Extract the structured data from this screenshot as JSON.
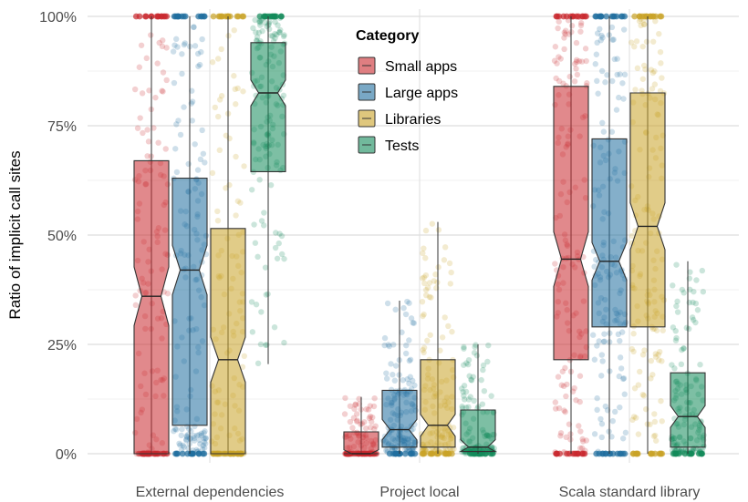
{
  "chart_data": {
    "type": "boxplot",
    "ylabel": "Ratio of implicit call sites",
    "xlabel": "",
    "ylim": [
      0,
      100
    ],
    "y_ticks": [
      0,
      25,
      50,
      75,
      100
    ],
    "y_tick_labels": [
      "0%",
      "25%",
      "50%",
      "75%",
      "100%"
    ],
    "categories": [
      "External dependencies",
      "Project local",
      "Scala standard library"
    ],
    "legend": {
      "title": "Category",
      "position": "top-center"
    },
    "grid": true,
    "jittered_points": true,
    "notched": true,
    "series": [
      {
        "name": "Small apps",
        "color": "#c9282d",
        "boxes": [
          {
            "q1": 0,
            "median": 36,
            "q3": 67,
            "whisker_low": 0,
            "whisker_high": 100
          },
          {
            "q1": 0,
            "median": 0,
            "q3": 5,
            "whisker_low": 0,
            "whisker_high": 13
          },
          {
            "q1": 21.5,
            "median": 44.5,
            "q3": 84,
            "whisker_low": 0,
            "whisker_high": 100
          }
        ]
      },
      {
        "name": "Large apps",
        "color": "#1f6e9e",
        "boxes": [
          {
            "q1": 6.5,
            "median": 42,
            "q3": 63,
            "whisker_low": 0,
            "whisker_high": 100
          },
          {
            "q1": 1.5,
            "median": 5.5,
            "q3": 14.5,
            "whisker_low": 0,
            "whisker_high": 35
          },
          {
            "q1": 29,
            "median": 44,
            "q3": 72,
            "whisker_low": 0,
            "whisker_high": 100
          }
        ]
      },
      {
        "name": "Libraries",
        "color": "#c9a227",
        "boxes": [
          {
            "q1": 0,
            "median": 21.5,
            "q3": 51.5,
            "whisker_low": 0,
            "whisker_high": 100
          },
          {
            "q1": 1.5,
            "median": 6.5,
            "q3": 21.5,
            "whisker_low": 0,
            "whisker_high": 53
          },
          {
            "q1": 29,
            "median": 52,
            "q3": 82.5,
            "whisker_low": 0,
            "whisker_high": 100
          }
        ]
      },
      {
        "name": "Tests",
        "color": "#138a5a",
        "boxes": [
          {
            "q1": 64.5,
            "median": 82.5,
            "q3": 94,
            "whisker_low": 20.5,
            "whisker_high": 100
          },
          {
            "q1": 0.5,
            "median": 1.5,
            "q3": 10,
            "whisker_low": 0,
            "whisker_high": 25
          },
          {
            "q1": 1.5,
            "median": 8.5,
            "q3": 18.5,
            "whisker_low": 0,
            "whisker_high": 44
          }
        ]
      }
    ]
  }
}
